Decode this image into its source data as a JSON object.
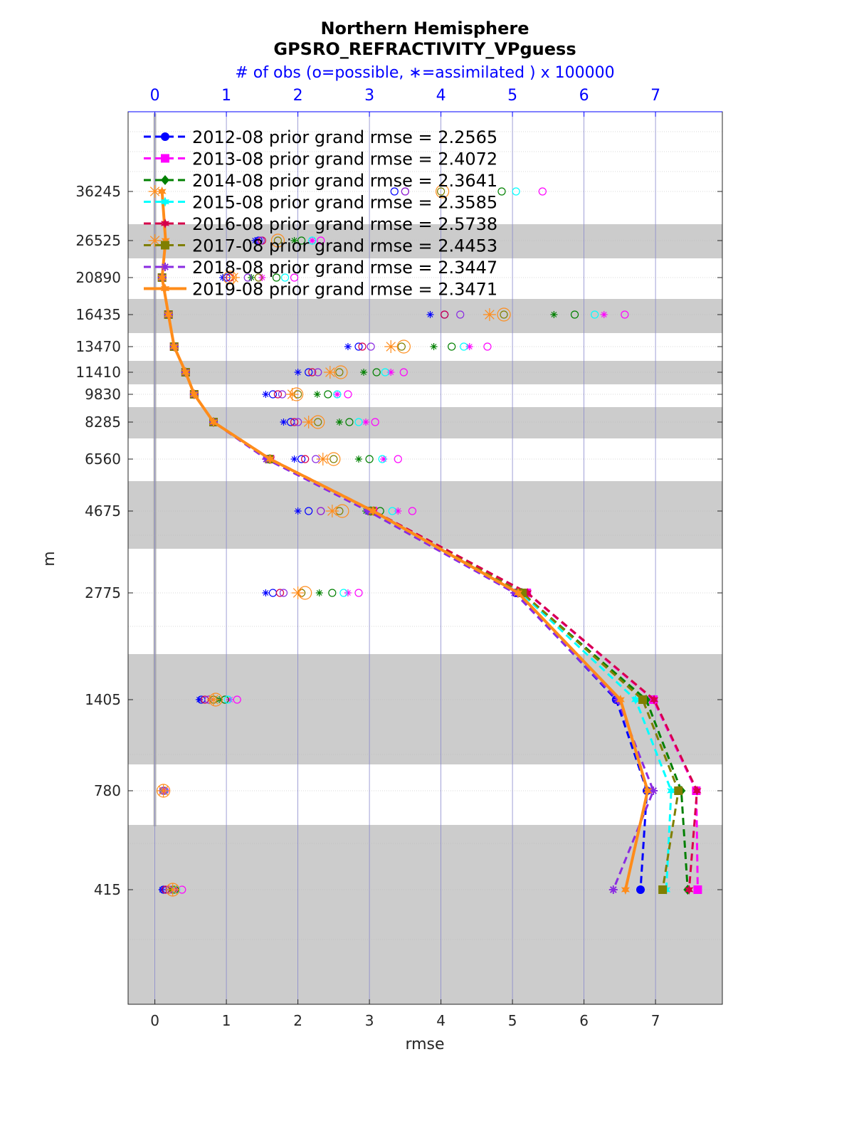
{
  "chart_data": {
    "type": "line",
    "title": "Northern Hemisphere",
    "subtitle": "GPSRO_REFRACTIVITY_VPguess",
    "top_axis_label": "# of obs (o=possible, ∗=assimilated ) x 100000",
    "xlabel": "rmse",
    "ylabel": "m",
    "xlim": [
      -0.35,
      7.95
    ],
    "x_ticks": [
      "0",
      "1",
      "2",
      "3",
      "4",
      "5",
      "6",
      "7"
    ],
    "top_ticks": [
      "0",
      "1",
      "2",
      "3",
      "4",
      "5",
      "6",
      "7"
    ],
    "levels": [
      "36245",
      "26525",
      "20890",
      "16435",
      "13470",
      "11410",
      "9830",
      "8285",
      "6560",
      "4675",
      "2775",
      "1405",
      "780",
      "415"
    ],
    "grid": true,
    "legend_position": "top-left",
    "series": [
      {
        "name": "2012-08 prior grand rmse = 2.2565",
        "color": "#0000ff",
        "dash": "dashed",
        "marker": "circle",
        "values": [
          null,
          null,
          0.1,
          0.19,
          0.27,
          0.43,
          0.55,
          0.82,
          1.59,
          3.0,
          5.05,
          6.45,
          6.88,
          6.79
        ]
      },
      {
        "name": "2013-08 prior grand rmse = 2.4072",
        "color": "#ff00ff",
        "dash": "dashed",
        "marker": "square",
        "values": [
          null,
          null,
          0.1,
          0.19,
          0.27,
          0.43,
          0.55,
          0.82,
          1.61,
          3.05,
          5.2,
          6.97,
          7.57,
          7.59
        ]
      },
      {
        "name": "2014-08 prior grand rmse = 2.3641",
        "color": "#008000",
        "dash": "dashed",
        "marker": "diamond",
        "values": [
          null,
          null,
          0.1,
          0.19,
          0.27,
          0.43,
          0.55,
          0.82,
          1.6,
          3.02,
          5.13,
          6.87,
          7.36,
          7.45
        ]
      },
      {
        "name": "2015-08 prior grand rmse = 2.3585",
        "color": "#00ffff",
        "dash": "dashed",
        "marker": "hexagram",
        "values": [
          null,
          null,
          0.1,
          0.19,
          0.27,
          0.43,
          0.55,
          0.82,
          1.6,
          3.02,
          5.12,
          6.72,
          7.22,
          7.15
        ]
      },
      {
        "name": "2016-08 prior grand rmse = 2.5738",
        "color": "#d6004a",
        "dash": "dashed",
        "marker": "hexagram",
        "values": [
          null,
          null,
          0.1,
          0.19,
          0.27,
          0.43,
          0.55,
          0.82,
          1.62,
          3.06,
          5.21,
          6.98,
          7.58,
          7.47
        ]
      },
      {
        "name": "2017-08 prior grand rmse = 2.4453",
        "color": "#7f7f00",
        "dash": "dashed",
        "marker": "square",
        "values": [
          null,
          null,
          0.1,
          0.19,
          0.27,
          0.43,
          0.55,
          0.82,
          1.6,
          3.03,
          5.14,
          6.82,
          7.32,
          7.1
        ]
      },
      {
        "name": "2018-08 prior grand rmse = 2.3447",
        "color": "#8a2be2",
        "dash": "dashed",
        "marker": "asterisk",
        "values": [
          null,
          null,
          0.1,
          0.19,
          0.27,
          0.43,
          0.55,
          0.82,
          1.56,
          2.98,
          5.03,
          6.47,
          6.97,
          6.41
        ]
      },
      {
        "name": "2019-08 prior grand rmse = 2.3471",
        "color": "#ff8c1a",
        "dash": "solid",
        "marker": "hexagram",
        "values": [
          0.1,
          0.15,
          0.1,
          0.19,
          0.27,
          0.43,
          0.55,
          0.82,
          1.61,
          3.05,
          5.08,
          6.51,
          6.89,
          6.58
        ]
      }
    ],
    "obs_counts_x100000": [
      {
        "name": "2012-08",
        "color": "#0000ff",
        "possible": [
          3.35,
          1.45,
          1.0,
          4.05,
          2.85,
          2.15,
          1.65,
          1.9,
          2.05,
          2.15,
          1.65,
          0.65,
          0.12,
          0.12
        ],
        "assimilated": [
          null,
          1.4,
          0.95,
          3.85,
          2.7,
          2.0,
          1.55,
          1.8,
          1.95,
          2.0,
          1.55,
          0.62,
          0.1,
          0.1
        ]
      },
      {
        "name": "2013-08",
        "color": "#ff00ff",
        "possible": [
          5.42,
          2.32,
          1.95,
          6.57,
          4.65,
          3.48,
          2.7,
          3.08,
          3.4,
          3.6,
          2.85,
          1.15,
          0.14,
          0.38
        ],
        "assimilated": [
          null,
          2.2,
          1.5,
          6.28,
          4.4,
          3.3,
          2.55,
          2.95,
          3.2,
          3.4,
          2.7,
          1.05,
          0.13,
          0.3
        ]
      },
      {
        "name": "2014-08",
        "color": "#008000",
        "possible": [
          4.85,
          2.05,
          1.7,
          5.87,
          4.15,
          3.1,
          2.42,
          2.72,
          3.0,
          3.15,
          2.48,
          0.98,
          0.13,
          0.28
        ],
        "assimilated": [
          null,
          1.95,
          1.35,
          5.58,
          3.9,
          2.92,
          2.27,
          2.58,
          2.85,
          2.95,
          2.3,
          0.9,
          0.12,
          0.22
        ]
      },
      {
        "name": "2015-08",
        "color": "#00ffff",
        "possible": [
          5.05,
          2.2,
          1.82,
          6.15,
          4.32,
          3.22,
          2.55,
          2.85,
          3.18,
          3.32,
          2.64,
          1.02,
          0.13,
          0.3
        ]
      },
      {
        "name": "2016-08",
        "color": "#d6004a",
        "possible": [
          3.5,
          1.5,
          1.05,
          4.05,
          2.9,
          2.2,
          1.72,
          1.95,
          2.1,
          2.32,
          1.75,
          0.7,
          0.12,
          0.15
        ]
      },
      {
        "name": "2017-08",
        "color": "#7f7f00",
        "possible": [
          4.0,
          1.72,
          1.45,
          4.88,
          3.45,
          2.58,
          2.0,
          2.28,
          2.5,
          2.58,
          2.05,
          0.82,
          0.12,
          0.25
        ]
      },
      {
        "name": "2018-08",
        "color": "#8a2be2",
        "possible": [
          3.5,
          1.48,
          1.3,
          4.27,
          3.02,
          2.28,
          1.78,
          2.0,
          2.25,
          2.32,
          1.8,
          0.75,
          0.12,
          0.2
        ]
      },
      {
        "name": "2019-08",
        "color": "#ff8c1a",
        "possible": [
          4.02,
          1.72,
          1.05,
          4.88,
          3.48,
          2.6,
          1.98,
          2.28,
          2.5,
          2.62,
          2.1,
          0.85,
          0.12,
          0.25
        ],
        "assimilated": [
          0.0,
          0.0,
          1.1,
          4.68,
          3.3,
          2.45,
          1.92,
          2.15,
          2.35,
          2.48,
          2.0,
          0.82,
          0.12,
          0.25
        ]
      }
    ]
  }
}
